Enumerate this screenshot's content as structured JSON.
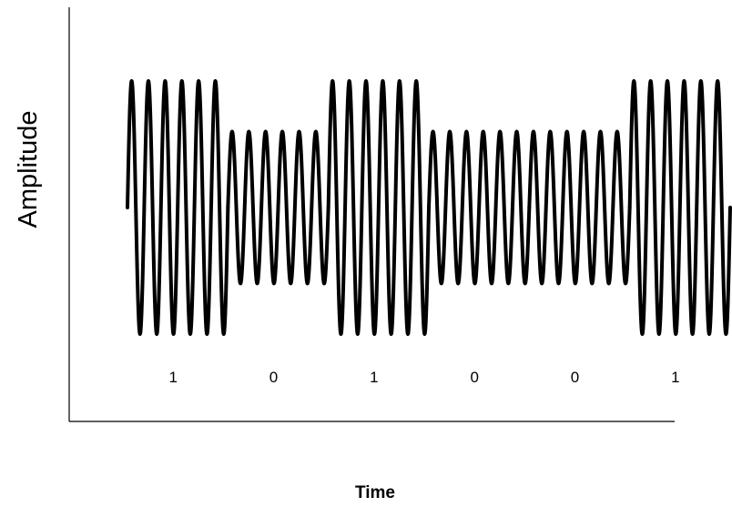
{
  "diagram": {
    "xlabel": "Time",
    "ylabel": "Amplitude",
    "colors": {
      "wave": "#000000",
      "axis": "#000000"
    },
    "wave": {
      "type": "amplitude-shift-keying",
      "cycles_per_bit": 6,
      "amplitude_high": 1.0,
      "amplitude_low": 0.6
    },
    "bits": [
      {
        "label": "1",
        "value": 1
      },
      {
        "label": "0",
        "value": 0
      },
      {
        "label": "1",
        "value": 1
      },
      {
        "label": "0",
        "value": 0
      },
      {
        "label": "0",
        "value": 0
      },
      {
        "label": "1",
        "value": 1
      }
    ]
  }
}
